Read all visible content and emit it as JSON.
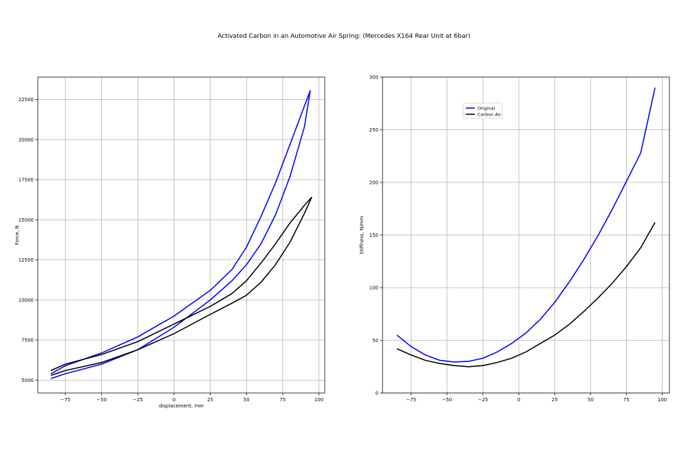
{
  "figure": {
    "title": "Activated Carbon in an Automotive Air Spring: (Mercedes X164 Rear Unit at 6bar)"
  },
  "chart_data": [
    {
      "type": "line",
      "xlabel": "displacement, mm",
      "ylabel": "Force, N",
      "xlim": [
        -94,
        104
      ],
      "ylim": [
        4200,
        23900
      ],
      "xticks": [
        -75,
        -50,
        -25,
        0,
        25,
        50,
        75,
        100
      ],
      "yticks": [
        5000,
        7500,
        10000,
        12500,
        15000,
        17500,
        20000,
        22500
      ],
      "xtick_labels": [
        "−75",
        "−50",
        "−25",
        "0",
        "25",
        "50",
        "75",
        "100"
      ],
      "ytick_labels": [
        "5000",
        "7500",
        "10000",
        "12500",
        "15000",
        "17500",
        "20000",
        "22500"
      ],
      "grid": true,
      "series": [
        {
          "color": "#0000ff",
          "note_closed_loop": true,
          "upper": [
            [
              -85,
              5400
            ],
            [
              -75,
              5900
            ],
            [
              -50,
              6700
            ],
            [
              -25,
              7700
            ],
            [
              0,
              9000
            ],
            [
              25,
              10600
            ],
            [
              40,
              11900
            ],
            [
              50,
              13300
            ],
            [
              60,
              15200
            ],
            [
              70,
              17300
            ],
            [
              80,
              19700
            ],
            [
              90,
              22100
            ],
            [
              94,
              23050
            ]
          ],
          "lower": [
            [
              94,
              23050
            ],
            [
              90,
              20800
            ],
            [
              80,
              17700
            ],
            [
              70,
              15300
            ],
            [
              60,
              13500
            ],
            [
              50,
              12200
            ],
            [
              40,
              11200
            ],
            [
              25,
              10000
            ],
            [
              0,
              8300
            ],
            [
              -25,
              6900
            ],
            [
              -50,
              6000
            ],
            [
              -75,
              5400
            ],
            [
              -85,
              5100
            ]
          ]
        },
        {
          "color": "#000000",
          "note_closed_loop": true,
          "upper": [
            [
              -85,
              5600
            ],
            [
              -75,
              6000
            ],
            [
              -50,
              6600
            ],
            [
              -25,
              7400
            ],
            [
              0,
              8500
            ],
            [
              25,
              9600
            ],
            [
              40,
              10400
            ],
            [
              50,
              11200
            ],
            [
              60,
              12300
            ],
            [
              70,
              13500
            ],
            [
              80,
              14800
            ],
            [
              90,
              15900
            ],
            [
              95,
              16400
            ]
          ],
          "lower": [
            [
              95,
              16400
            ],
            [
              90,
              15400
            ],
            [
              80,
              13600
            ],
            [
              70,
              12200
            ],
            [
              60,
              11100
            ],
            [
              50,
              10300
            ],
            [
              40,
              9800
            ],
            [
              25,
              9100
            ],
            [
              0,
              7900
            ],
            [
              -25,
              6900
            ],
            [
              -50,
              6100
            ],
            [
              -75,
              5600
            ],
            [
              -85,
              5300
            ]
          ]
        }
      ]
    },
    {
      "type": "line",
      "xlabel": "",
      "ylabel": "Stiffness, N/mm",
      "xlim": [
        -95,
        105
      ],
      "ylim": [
        0,
        300
      ],
      "xticks": [
        -75,
        -50,
        -25,
        0,
        25,
        50,
        75,
        100
      ],
      "yticks": [
        0,
        50,
        100,
        150,
        200,
        250,
        300
      ],
      "xtick_labels": [
        "−75",
        "−50",
        "−25",
        "0",
        "25",
        "50",
        "75",
        "100"
      ],
      "ytick_labels": [
        "0",
        "50",
        "100",
        "150",
        "200",
        "250",
        "300"
      ],
      "grid": true,
      "legend_position": "upper-left",
      "series": [
        {
          "name": "Original",
          "color": "#0000ff",
          "x": [
            -85,
            -75,
            -65,
            -55,
            -45,
            -35,
            -25,
            -15,
            -5,
            5,
            15,
            25,
            35,
            45,
            55,
            65,
            75,
            85,
            95
          ],
          "y": [
            55,
            44,
            36,
            31,
            29.5,
            30,
            33,
            39,
            47,
            57,
            70,
            86,
            105,
            126,
            149,
            174,
            201,
            228,
            290
          ]
        },
        {
          "name": "Carbon Air",
          "color": "#000000",
          "x": [
            -85,
            -75,
            -65,
            -55,
            -45,
            -35,
            -25,
            -15,
            -5,
            5,
            15,
            25,
            35,
            45,
            55,
            65,
            75,
            85,
            95
          ],
          "y": [
            42,
            36,
            31,
            28,
            26,
            25,
            26,
            29,
            33,
            39,
            47,
            55,
            65,
            77,
            90,
            104,
            120,
            138,
            162
          ]
        }
      ]
    }
  ]
}
